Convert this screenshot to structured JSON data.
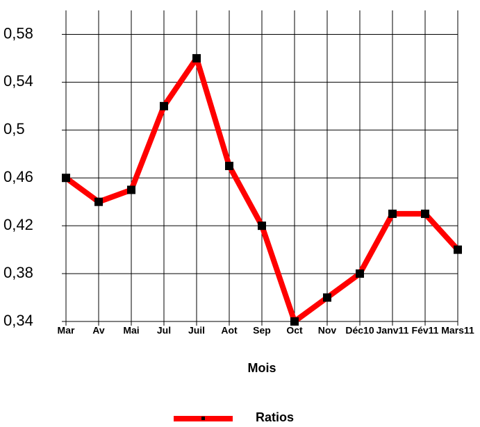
{
  "chart_data": {
    "type": "line",
    "x_label": "Mois",
    "categories": [
      "Mar",
      "Av",
      "Mai",
      "Jul",
      "Juil",
      "Aot",
      "Sep",
      "Oct",
      "Nov",
      "Déc10",
      "Janv11",
      "Fév11",
      "Mars11"
    ],
    "series": [
      {
        "name": "Ratios",
        "color": "#ff0000",
        "marker_color": "#000000",
        "values": [
          0.46,
          0.44,
          0.45,
          0.52,
          0.56,
          0.47,
          0.42,
          0.34,
          0.36,
          0.38,
          0.43,
          0.43,
          0.4
        ]
      }
    ],
    "ylim": [
      0.34,
      0.6
    ],
    "yticks": [
      {
        "value": 0.34,
        "label": "0,34"
      },
      {
        "value": 0.38,
        "label": "0,38"
      },
      {
        "value": 0.42,
        "label": "0,42"
      },
      {
        "value": 0.46,
        "label": "0,46"
      },
      {
        "value": 0.5,
        "label": "0,5"
      },
      {
        "value": 0.54,
        "label": "0,54"
      },
      {
        "value": 0.58,
        "label": "0,58"
      }
    ],
    "grid": true,
    "legend": "bottom"
  }
}
